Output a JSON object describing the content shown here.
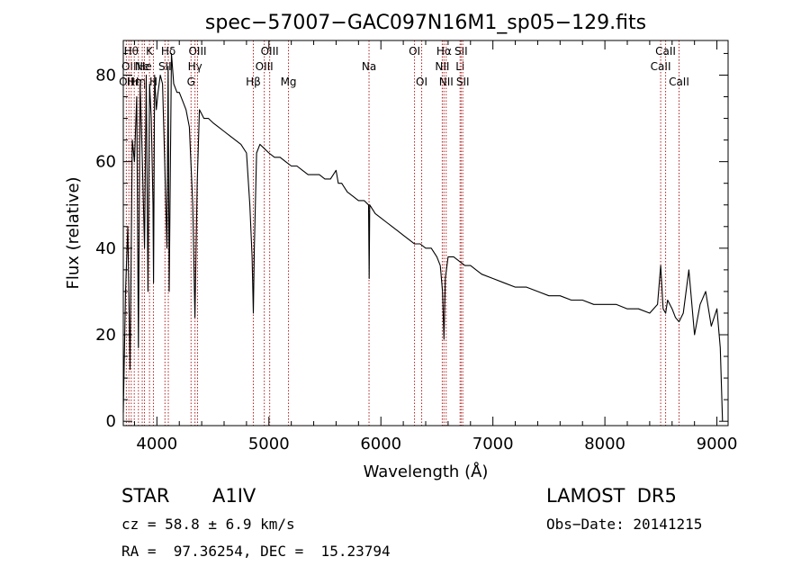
{
  "chart_data": {
    "type": "line",
    "title": "spec−57007−GAC097N16M1_sp05−129.fits",
    "xlabel": "Wavelength (Å)",
    "ylabel": "Flux (relative)",
    "xlim": [
      3700,
      9100
    ],
    "ylim": [
      -1,
      88
    ],
    "xticks": [
      4000,
      5000,
      6000,
      7000,
      8000,
      9000
    ],
    "yticks": [
      0,
      20,
      40,
      60,
      80
    ],
    "grid": false,
    "series": [
      {
        "x": [
          3700,
          3720,
          3740,
          3760,
          3780,
          3800,
          3820,
          3835,
          3850,
          3870,
          3890,
          3905,
          3920,
          3935,
          3950,
          3965,
          3970,
          3980,
          3995,
          4010,
          4030,
          4050,
          4070,
          4090,
          4100,
          4110,
          4130,
          4150,
          4180,
          4200,
          4230,
          4260,
          4290,
          4320,
          4340,
          4360,
          4380,
          4420,
          4460,
          4500,
          4550,
          4600,
          4650,
          4700,
          4750,
          4800,
          4830,
          4850,
          4861,
          4870,
          4890,
          4920,
          4960,
          5000,
          5050,
          5100,
          5150,
          5200,
          5250,
          5300,
          5350,
          5400,
          5450,
          5500,
          5550,
          5600,
          5620,
          5650,
          5700,
          5750,
          5800,
          5850,
          5890,
          5895,
          5900,
          5950,
          6000,
          6050,
          6100,
          6150,
          6200,
          6250,
          6300,
          6350,
          6400,
          6450,
          6500,
          6530,
          6550,
          6563,
          6575,
          6600,
          6650,
          6700,
          6750,
          6800,
          6850,
          6900,
          7000,
          7100,
          7200,
          7300,
          7400,
          7500,
          7600,
          7700,
          7800,
          7900,
          8000,
          8100,
          8200,
          8300,
          8400,
          8470,
          8498,
          8520,
          8542,
          8560,
          8600,
          8630,
          8662,
          8700,
          8750,
          8800,
          8850,
          8900,
          8950,
          9000,
          9030,
          9050
        ],
        "values": [
          2,
          30,
          45,
          12,
          65,
          60,
          75,
          17,
          78,
          60,
          40,
          80,
          30,
          78,
          70,
          50,
          32,
          80,
          72,
          76,
          80,
          78,
          60,
          40,
          82,
          30,
          85,
          78,
          76,
          76,
          74,
          72,
          68,
          50,
          24,
          55,
          72,
          70,
          70,
          69,
          68,
          67,
          66,
          65,
          64,
          62,
          50,
          38,
          25,
          40,
          62,
          64,
          63,
          62,
          61,
          61,
          60,
          59,
          59,
          58,
          57,
          57,
          57,
          56,
          56,
          58,
          55,
          55,
          53,
          52,
          51,
          51,
          50,
          33,
          50,
          48,
          47,
          46,
          45,
          44,
          43,
          42,
          41,
          41,
          40,
          40,
          38,
          36,
          30,
          19,
          33,
          38,
          38,
          37,
          36,
          36,
          35,
          34,
          33,
          32,
          31,
          31,
          30,
          29,
          29,
          28,
          28,
          27,
          27,
          27,
          26,
          26,
          25,
          27,
          36,
          26,
          25,
          28,
          26,
          24,
          23,
          25,
          35,
          20,
          27,
          30,
          22,
          26,
          17,
          0
        ]
      }
    ],
    "line_marks": [
      {
        "wl": 3727,
        "label": "OII",
        "row": 3
      },
      {
        "wl": 3750,
        "label": "OII",
        "row": 2
      },
      {
        "wl": 3771,
        "label": "Hθ",
        "row": 1
      },
      {
        "wl": 3798,
        "label": "Hη",
        "row": 3
      },
      {
        "wl": 3835,
        "label": "Hη",
        "row": 3
      },
      {
        "wl": 3869,
        "label": "Ne",
        "row": 2
      },
      {
        "wl": 3889,
        "label": "He",
        "row": 2
      },
      {
        "wl": 3934,
        "label": "K",
        "row": 1
      },
      {
        "wl": 3969,
        "label": "H",
        "row": 3
      },
      {
        "wl": 4072,
        "label": "SII",
        "row": 2
      },
      {
        "wl": 4102,
        "label": "Hδ",
        "row": 1
      },
      {
        "wl": 4305,
        "label": "G",
        "row": 3
      },
      {
        "wl": 4340,
        "label": "Hγ",
        "row": 2
      },
      {
        "wl": 4363,
        "label": "OIII",
        "row": 1
      },
      {
        "wl": 4861,
        "label": "Hβ",
        "row": 3
      },
      {
        "wl": 4959,
        "label": "OIII",
        "row": 2
      },
      {
        "wl": 5007,
        "label": "OIII",
        "row": 1
      },
      {
        "wl": 5175,
        "label": "Mg",
        "row": 3
      },
      {
        "wl": 5894,
        "label": "Na",
        "row": 2
      },
      {
        "wl": 6300,
        "label": "OI",
        "row": 1
      },
      {
        "wl": 6364,
        "label": "OI",
        "row": 3
      },
      {
        "wl": 6548,
        "label": "NII",
        "row": 2
      },
      {
        "wl": 6563,
        "label": "Hα",
        "row": 1
      },
      {
        "wl": 6583,
        "label": "NII",
        "row": 3
      },
      {
        "wl": 6707,
        "label": "Li",
        "row": 2
      },
      {
        "wl": 6716,
        "label": "SII",
        "row": 1
      },
      {
        "wl": 6731,
        "label": "SII",
        "row": 3
      },
      {
        "wl": 8498,
        "label": "CaII",
        "row": 2
      },
      {
        "wl": 8542,
        "label": "CaII",
        "row": 1
      },
      {
        "wl": 8662,
        "label": "CaII",
        "row": 3
      }
    ]
  },
  "info": {
    "class_label": "STAR",
    "subclass": "A1IV",
    "survey": "LAMOST  DR5",
    "cz": "cz = 58.8 ± 6.9 km/s",
    "obs_date": "Obs−Date: 20141215",
    "radec": "RA =  97.36254, DEC =  15.23794"
  }
}
